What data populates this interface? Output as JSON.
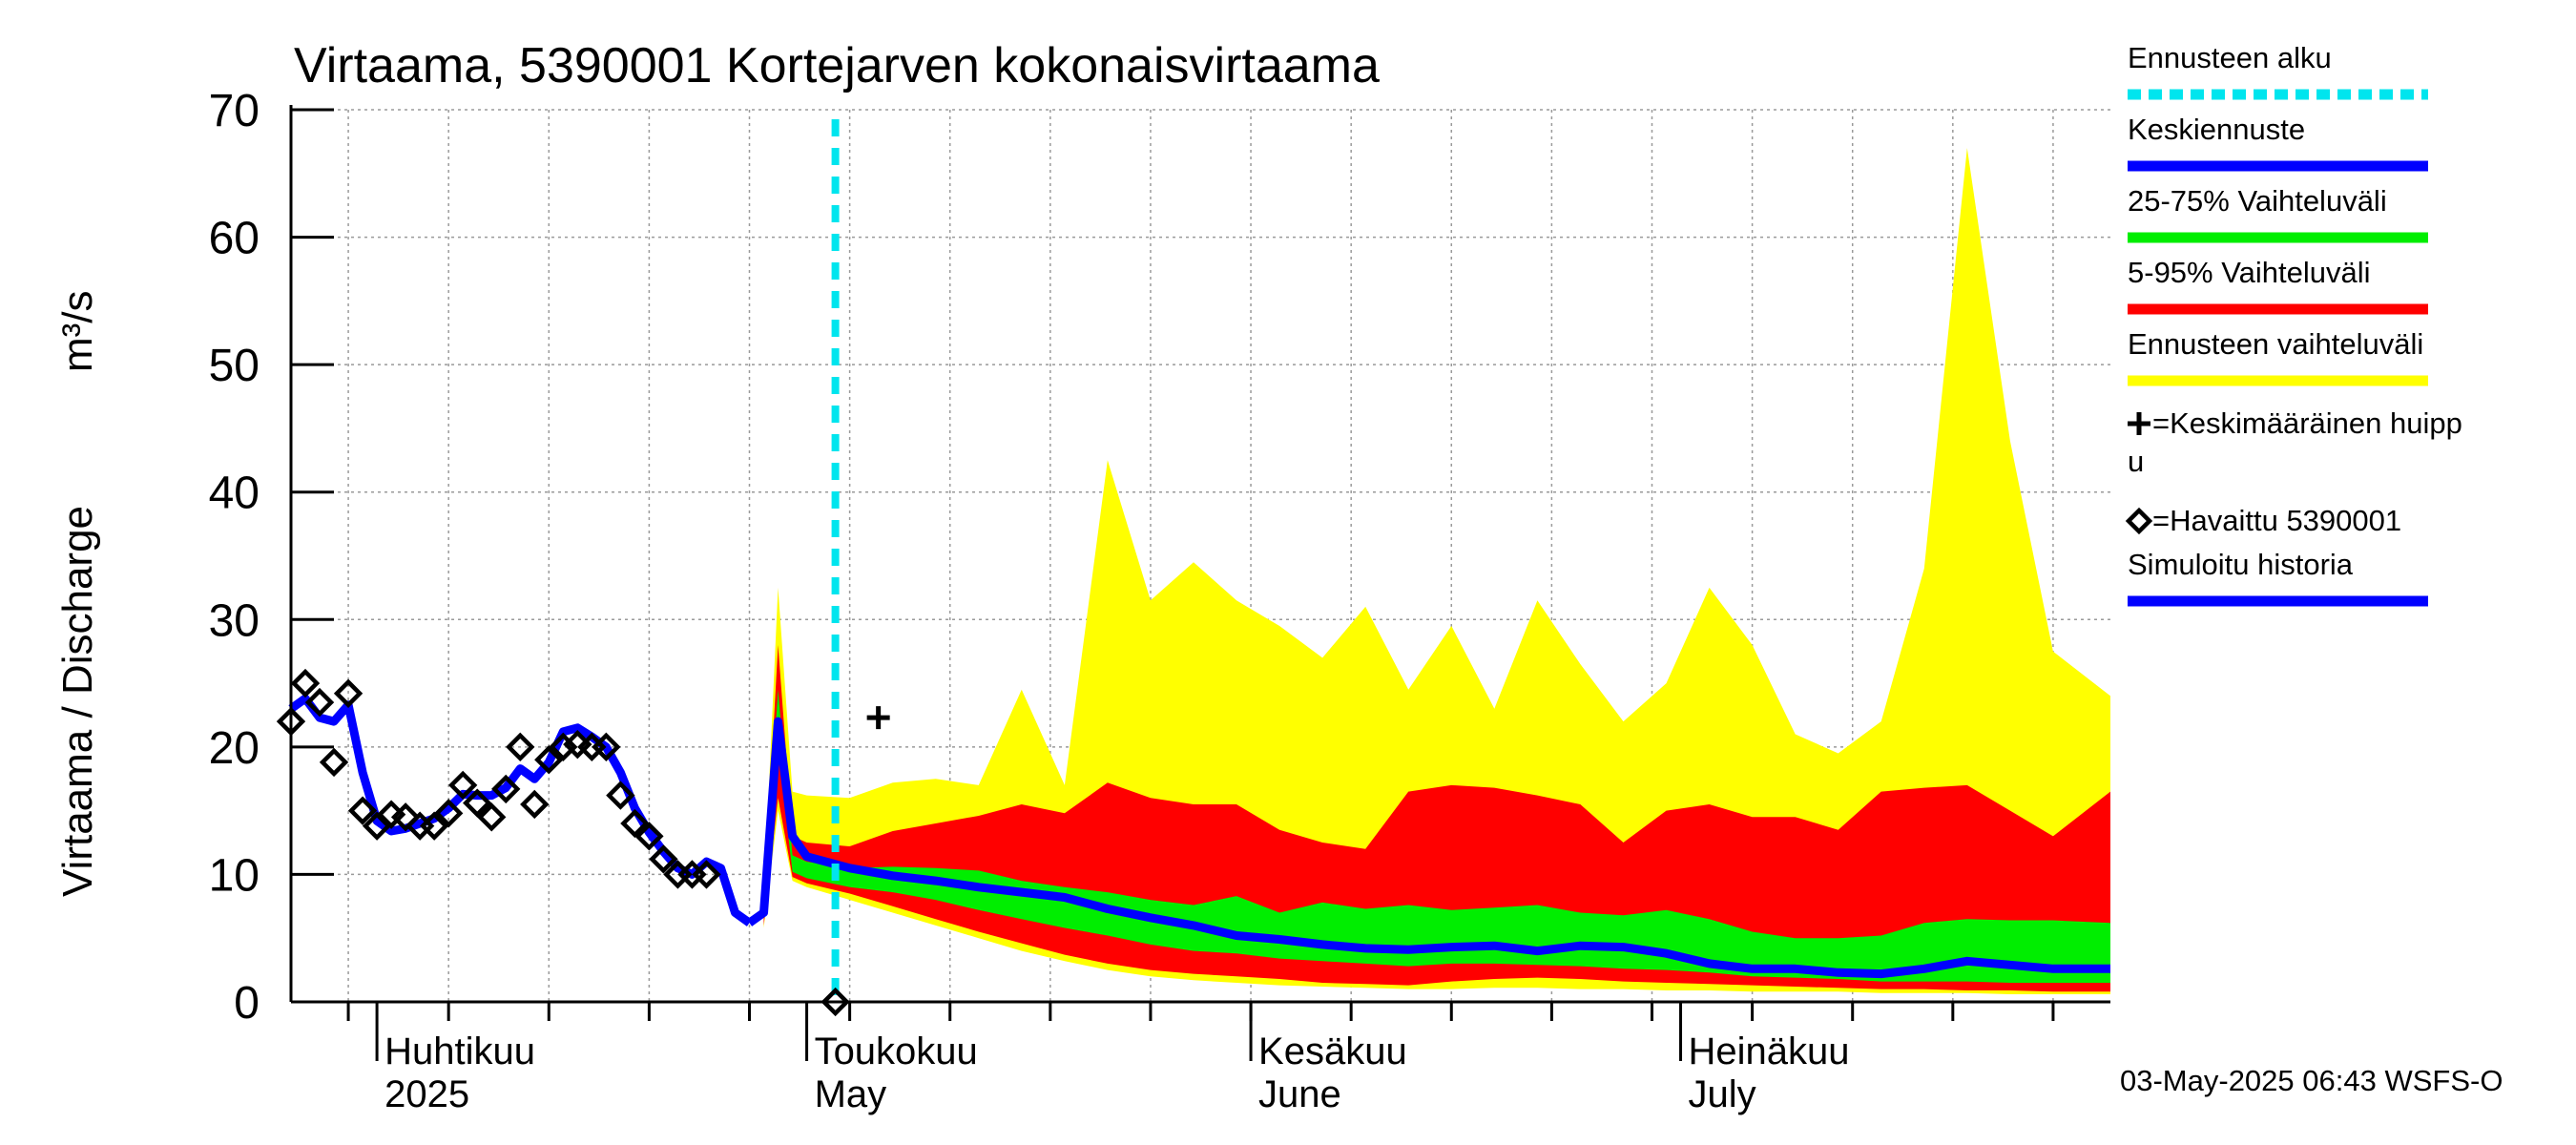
{
  "chart_data": {
    "type": "area",
    "title": "Virtaama, 5390001 Kortejarven kokonaisvirtaama",
    "ylabel": "Virtaama / Discharge",
    "yunit": "m³/s",
    "ylim": [
      0,
      70
    ],
    "yticks": [
      0,
      10,
      20,
      30,
      40,
      50,
      60,
      70
    ],
    "xlim": [
      "2025-03-26",
      "2025-07-31"
    ],
    "grid": true,
    "month_labels": [
      {
        "date": "2025-04-01",
        "fi": "Huhtikuu",
        "en": "2025"
      },
      {
        "date": "2025-05-01",
        "fi": "Toukokuu",
        "en": "May"
      },
      {
        "date": "2025-06-01",
        "fi": "Kesäkuu",
        "en": "June"
      },
      {
        "date": "2025-07-01",
        "fi": "Heinäkuu",
        "en": "July"
      }
    ],
    "forecast_start": "2025-05-03",
    "mean_peak": {
      "date": "2025-05-06",
      "value": 22.3
    },
    "observed": [
      [
        "2025-03-26",
        22.0
      ],
      [
        "2025-03-27",
        25.0
      ],
      [
        "2025-03-28",
        23.5
      ],
      [
        "2025-03-29",
        18.8
      ],
      [
        "2025-03-30",
        24.2
      ],
      [
        "2025-03-31",
        15.0
      ],
      [
        "2025-04-01",
        13.8
      ],
      [
        "2025-04-02",
        14.7
      ],
      [
        "2025-04-03",
        14.5
      ],
      [
        "2025-04-04",
        13.8
      ],
      [
        "2025-04-05",
        13.8
      ],
      [
        "2025-04-06",
        14.8
      ],
      [
        "2025-04-07",
        17.0
      ],
      [
        "2025-04-08",
        15.6
      ],
      [
        "2025-04-09",
        14.5
      ],
      [
        "2025-04-10",
        16.7
      ],
      [
        "2025-04-11",
        20.0
      ],
      [
        "2025-04-12",
        15.5
      ],
      [
        "2025-04-13",
        19.0
      ],
      [
        "2025-04-14",
        20.0
      ],
      [
        "2025-04-15",
        20.2
      ],
      [
        "2025-04-16",
        20.0
      ],
      [
        "2025-04-17",
        20.0
      ],
      [
        "2025-04-18",
        16.2
      ],
      [
        "2025-04-19",
        14.0
      ],
      [
        "2025-04-20",
        13.0
      ],
      [
        "2025-04-21",
        11.2
      ],
      [
        "2025-04-22",
        10.0
      ],
      [
        "2025-04-23",
        10.0
      ],
      [
        "2025-04-24",
        10.0
      ],
      [
        "2025-05-03",
        0.0
      ]
    ],
    "simulated_history": [
      [
        "2025-03-26",
        23.0
      ],
      [
        "2025-03-27",
        23.8
      ],
      [
        "2025-03-28",
        22.3
      ],
      [
        "2025-03-29",
        22.0
      ],
      [
        "2025-03-30",
        23.3
      ],
      [
        "2025-03-31",
        18.0
      ],
      [
        "2025-04-01",
        14.2
      ],
      [
        "2025-04-02",
        13.4
      ],
      [
        "2025-04-03",
        13.6
      ],
      [
        "2025-04-04",
        14.0
      ],
      [
        "2025-04-05",
        14.4
      ],
      [
        "2025-04-06",
        15.2
      ],
      [
        "2025-04-07",
        16.3
      ],
      [
        "2025-04-08",
        16.2
      ],
      [
        "2025-04-09",
        16.2
      ],
      [
        "2025-04-10",
        16.8
      ],
      [
        "2025-04-11",
        18.3
      ],
      [
        "2025-04-12",
        17.5
      ],
      [
        "2025-04-13",
        18.8
      ],
      [
        "2025-04-14",
        21.2
      ],
      [
        "2025-04-15",
        21.5
      ],
      [
        "2025-04-16",
        20.8
      ],
      [
        "2025-04-17",
        20.0
      ],
      [
        "2025-04-18",
        18.0
      ],
      [
        "2025-04-19",
        15.2
      ],
      [
        "2025-04-20",
        13.3
      ],
      [
        "2025-04-21",
        11.8
      ],
      [
        "2025-04-22",
        10.5
      ],
      [
        "2025-04-23",
        10.0
      ],
      [
        "2025-04-24",
        11.0
      ],
      [
        "2025-04-25",
        10.5
      ],
      [
        "2025-04-26",
        7.0
      ],
      [
        "2025-04-27",
        6.2
      ]
    ],
    "forecast_median": [
      [
        "2025-04-27",
        6.2
      ],
      [
        "2025-04-28",
        7.0
      ],
      [
        "2025-04-29",
        22.0
      ],
      [
        "2025-04-30",
        13.0
      ],
      [
        "2025-05-01",
        11.4
      ],
      [
        "2025-05-04",
        10.5
      ],
      [
        "2025-05-07",
        9.9
      ],
      [
        "2025-05-10",
        9.5
      ],
      [
        "2025-05-13",
        9.0
      ],
      [
        "2025-05-16",
        8.6
      ],
      [
        "2025-05-19",
        8.2
      ],
      [
        "2025-05-22",
        7.3
      ],
      [
        "2025-05-25",
        6.6
      ],
      [
        "2025-05-28",
        6.0
      ],
      [
        "2025-05-31",
        5.2
      ],
      [
        "2025-06-03",
        4.9
      ],
      [
        "2025-06-06",
        4.5
      ],
      [
        "2025-06-09",
        4.2
      ],
      [
        "2025-06-12",
        4.1
      ],
      [
        "2025-06-15",
        4.3
      ],
      [
        "2025-06-18",
        4.4
      ],
      [
        "2025-06-21",
        4.0
      ],
      [
        "2025-06-24",
        4.4
      ],
      [
        "2025-06-27",
        4.3
      ],
      [
        "2025-06-30",
        3.8
      ],
      [
        "2025-07-03",
        3.0
      ],
      [
        "2025-07-06",
        2.6
      ],
      [
        "2025-07-09",
        2.6
      ],
      [
        "2025-07-12",
        2.3
      ],
      [
        "2025-07-15",
        2.2
      ],
      [
        "2025-07-18",
        2.6
      ],
      [
        "2025-07-21",
        3.2
      ],
      [
        "2025-07-24",
        2.9
      ],
      [
        "2025-07-27",
        2.6
      ],
      [
        "2025-07-31",
        2.6
      ]
    ],
    "forecast_range": {
      "dates": [
        "2025-04-28",
        "2025-04-29",
        "2025-04-30",
        "2025-05-01",
        "2025-05-04",
        "2025-05-07",
        "2025-05-10",
        "2025-05-13",
        "2025-05-16",
        "2025-05-19",
        "2025-05-22",
        "2025-05-25",
        "2025-05-28",
        "2025-05-31",
        "2025-06-03",
        "2025-06-06",
        "2025-06-09",
        "2025-06-12",
        "2025-06-15",
        "2025-06-18",
        "2025-06-21",
        "2025-06-24",
        "2025-06-27",
        "2025-06-30",
        "2025-07-03",
        "2025-07-06",
        "2025-07-09",
        "2025-07-12",
        "2025-07-15",
        "2025-07-18",
        "2025-07-21",
        "2025-07-24",
        "2025-07-27",
        "2025-07-31"
      ],
      "max": [
        8.0,
        32.5,
        16.5,
        16.2,
        16.0,
        17.2,
        17.5,
        17.0,
        24.5,
        17.0,
        42.5,
        31.5,
        34.5,
        31.5,
        29.5,
        27.0,
        31.0,
        24.5,
        29.5,
        23.0,
        31.5,
        26.5,
        22.0,
        25.0,
        32.5,
        28.0,
        21.0,
        19.5,
        22.0,
        34.0,
        67.0,
        44.0,
        27.5,
        24.0
      ],
      "p95": [
        7.5,
        28.0,
        13.0,
        12.5,
        12.2,
        13.4,
        14.0,
        14.6,
        15.5,
        14.8,
        17.2,
        16.0,
        15.5,
        15.5,
        13.5,
        12.5,
        12.0,
        16.5,
        17.0,
        16.8,
        16.2,
        15.5,
        12.5,
        15.0,
        15.5,
        14.5,
        14.5,
        13.5,
        16.5,
        16.8,
        17.0,
        15.0,
        13.0,
        16.5
      ],
      "p75": [
        7.0,
        24.5,
        11.5,
        11.0,
        10.5,
        10.6,
        10.5,
        10.3,
        9.5,
        9.0,
        8.6,
        8.0,
        7.6,
        8.3,
        7.0,
        7.8,
        7.3,
        7.6,
        7.2,
        7.4,
        7.6,
        7.0,
        6.8,
        7.2,
        6.5,
        5.5,
        5.0,
        5.0,
        5.2,
        6.2,
        6.5,
        6.4,
        6.4,
        6.2
      ],
      "p25": [
        6.5,
        20.0,
        10.2,
        9.7,
        9.0,
        8.6,
        8.0,
        7.2,
        6.5,
        5.8,
        5.2,
        4.5,
        4.0,
        3.8,
        3.4,
        3.2,
        3.0,
        2.8,
        3.0,
        3.0,
        2.9,
        2.8,
        2.6,
        2.5,
        2.3,
        2.0,
        1.9,
        1.8,
        1.6,
        1.6,
        1.6,
        1.5,
        1.5,
        1.5
      ],
      "p5": [
        6.0,
        16.0,
        9.8,
        9.3,
        8.5,
        7.5,
        6.5,
        5.5,
        4.6,
        3.7,
        3.0,
        2.5,
        2.2,
        2.0,
        1.8,
        1.5,
        1.4,
        1.3,
        1.6,
        1.8,
        1.9,
        1.8,
        1.6,
        1.5,
        1.4,
        1.3,
        1.2,
        1.1,
        1.0,
        1.0,
        0.9,
        0.9,
        0.8,
        0.8
      ],
      "min": [
        5.8,
        15.0,
        9.5,
        9.0,
        8.0,
        7.0,
        6.0,
        5.0,
        4.0,
        3.2,
        2.5,
        2.0,
        1.7,
        1.5,
        1.3,
        1.2,
        1.1,
        1.0,
        1.0,
        1.1,
        1.1,
        1.0,
        1.0,
        0.9,
        0.9,
        0.8,
        0.8,
        0.8,
        0.7,
        0.7,
        0.7,
        0.6,
        0.6,
        0.6
      ]
    },
    "colors": {
      "forecast_start": "#00e5ee",
      "median": "#0000ff",
      "range_25_75": "#00ee00",
      "range_5_95": "#ff0000",
      "range_full": "#ffff00",
      "simulated": "#0000ff",
      "grid": "#9a9a9a"
    }
  },
  "legend": [
    {
      "key": "forecast_start",
      "label": "Ennusteen alku"
    },
    {
      "key": "median",
      "label": "Keskiennuste"
    },
    {
      "key": "range_25_75",
      "label": "25-75% Vaihteluväli"
    },
    {
      "key": "range_5_95",
      "label": "5-95% Vaihteluväli"
    },
    {
      "key": "range_full",
      "label": "Ennusteen vaihteluväli"
    },
    {
      "key": "mean_peak",
      "label": "=Keskimääräinen huipp",
      "label2": "u"
    },
    {
      "key": "observed",
      "label": "=Havaittu 5390001"
    },
    {
      "key": "simulated",
      "label": "Simuloitu historia"
    }
  ],
  "footer": "03-May-2025 06:43 WSFS-O"
}
